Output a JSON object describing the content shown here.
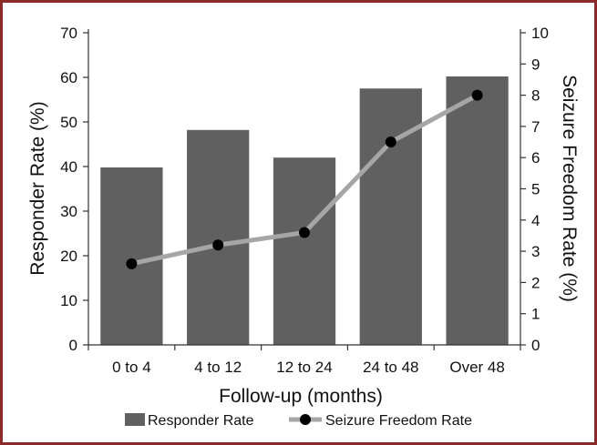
{
  "chart_data": {
    "type": "bar+line",
    "categories": [
      "0 to 4",
      "4 to 12",
      "12 to 24",
      "24 to 48",
      "Over 48"
    ],
    "series": [
      {
        "name": "Responder Rate",
        "type": "bar",
        "axis": "left",
        "values": [
          39.8,
          48.2,
          42.0,
          57.5,
          60.2
        ],
        "color": "#606060"
      },
      {
        "name": "Seizure Freedom Rate",
        "type": "line",
        "axis": "right",
        "values": [
          2.6,
          3.2,
          3.6,
          6.5,
          8.0
        ],
        "line_color": "#a6a6a6",
        "marker_color": "#000000"
      }
    ],
    "xlabel": "Follow-up (months)",
    "ylabel": "Responder Rate (%)",
    "y2label": "Seizure Freedom Rate (%)",
    "ylim": [
      0,
      70
    ],
    "yticks": [
      0,
      10,
      20,
      30,
      40,
      50,
      60,
      70
    ],
    "y2lim": [
      0,
      10
    ],
    "y2ticks": [
      0,
      1,
      2,
      3,
      4,
      5,
      6,
      7,
      8,
      9,
      10
    ],
    "grid": false,
    "legend_position": "bottom"
  }
}
